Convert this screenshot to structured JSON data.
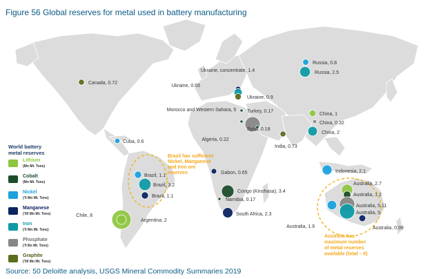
{
  "title": "Figure 56 Global reserves for metal used in battery manufacturing",
  "source": "Source: 50 Deloitte analysis, USGS Mineral Commodity Summaries 2019",
  "legend": {
    "title": "World battery\nmetal reserves",
    "items": [
      {
        "id": "lithium",
        "name": "Lithium",
        "unit": "(Mn Mt. Tons)",
        "color": "#8dc63f",
        "name_color": "#8dc63f"
      },
      {
        "id": "cobalt",
        "name": "Cobalt",
        "unit": "(Mn Mt. Tons)",
        "color": "#1d4d2b",
        "name_color": "#1d4d2b"
      },
      {
        "id": "nickel",
        "name": "Nickel",
        "unit": "('0 Mn Mt. Tons)",
        "color": "#1ba1dc",
        "name_color": "#1ba1dc"
      },
      {
        "id": "manganese",
        "name": "Manganese",
        "unit": "('00 Mn Mt. Tons)",
        "color": "#0c2461",
        "name_color": "#0c2461"
      },
      {
        "id": "iron",
        "name": "Iron",
        "unit": "('0 Mn Mt. Tons)",
        "color": "#0e9aa7",
        "name_color": "#0e9aa7"
      },
      {
        "id": "phosphate",
        "name": "Phosphate",
        "unit": "('0 Bn Mt. Tons)",
        "color": "#878787",
        "name_color": "#6e6e6e"
      },
      {
        "id": "graphite",
        "name": "Graphite",
        "unit": "('00 Mn Mt. Tons)",
        "color": "#5a6e1d",
        "name_color": "#4a5d17"
      }
    ]
  },
  "annotations": {
    "brazil": "Brazil has sufficient\nNickel, Manganese\nand Iron ore\nreserves",
    "australia": "Australia has\nmaximum number\nof metal reserves\navailable (total – 6)"
  },
  "markers": [
    {
      "metal": "graphite",
      "label": "Canada, 0.72",
      "value": 0.72
    },
    {
      "metal": "nickel",
      "label": "Cuba, 0.6",
      "value": 0.6
    },
    {
      "metal": "nickel",
      "label": "Brazil, 1.1",
      "value": 1.1
    },
    {
      "metal": "iron",
      "label": "Brazil, 3.2",
      "value": 3.2
    },
    {
      "metal": "manganese",
      "label": "Brazil, 1.1",
      "value": 1.1
    },
    {
      "metal": "lithium",
      "label": "Chile, 8",
      "value": 8
    },
    {
      "metal": "lithium",
      "label": "Argentina, 2",
      "value": 2
    },
    {
      "metal": "phosphate",
      "label": "Morocco and Western Sahara, 5",
      "value": 5
    },
    {
      "metal": "cobalt",
      "label": "Algeria, 0.22",
      "value": 0.22
    },
    {
      "metal": "manganese",
      "label": "Gabon, 0.65",
      "value": 0.65
    },
    {
      "metal": "cobalt",
      "label": "Congo (Kinshasa), 3.4",
      "value": 3.4
    },
    {
      "metal": "cobalt",
      "label": "Namibia, 0.17",
      "value": 0.17
    },
    {
      "metal": "manganese",
      "label": "South Africa, 2.3",
      "value": 2.3
    },
    {
      "metal": "manganese",
      "label": "Ukraine, 0.65",
      "value": 0.65
    },
    {
      "metal": "iron",
      "label": "Ukraine, concentrate, 1.4",
      "value": 1.4
    },
    {
      "metal": "graphite",
      "label": "Ukraine, 0.9",
      "value": 0.9
    },
    {
      "metal": "cobalt",
      "label": "Turkey, 0.17",
      "value": 0.17
    },
    {
      "metal": "cobalt",
      "label": "Syria, 0.18",
      "value": 0.18
    },
    {
      "metal": "nickel",
      "label": "Russia, 0.8",
      "value": 0.8
    },
    {
      "metal": "iron",
      "label": "Russia, 2.5",
      "value": 2.5
    },
    {
      "metal": "lithium",
      "label": "China, 1",
      "value": 1
    },
    {
      "metal": "phosphate",
      "label": "China, 0.32",
      "value": 0.32
    },
    {
      "metal": "iron",
      "label": "China, 2",
      "value": 2
    },
    {
      "metal": "graphite",
      "label": "India, 0.73",
      "value": 0.73
    },
    {
      "metal": "nickel",
      "label": "Indonesia, 2.1",
      "value": 2.1
    },
    {
      "metal": "lithium",
      "label": "Australia, 2.7",
      "value": 2.7
    },
    {
      "metal": "cobalt",
      "label": "Australia, 1.2",
      "value": 1.2
    },
    {
      "metal": "phosphate",
      "label": "Australia, 5.11",
      "value": 5.11
    },
    {
      "metal": "iron",
      "label": "Australia, 5",
      "value": 5
    },
    {
      "metal": "nickel",
      "label": "Australia, 1.9",
      "value": 1.9
    },
    {
      "metal": "manganese",
      "label": "Australia, 0.99",
      "value": 0.99
    }
  ]
}
